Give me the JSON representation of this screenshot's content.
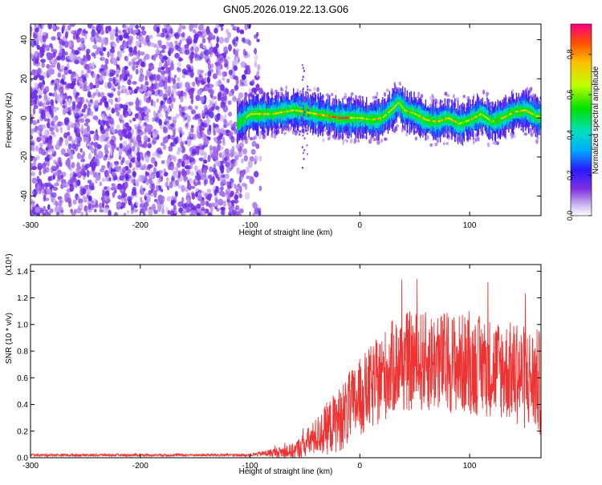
{
  "page_title": "GN05.2026.019.22.13.G06",
  "chart_data": [
    {
      "type": "heatmap",
      "title": "GN05.2026.019.22.13.G06",
      "xlabel": "Height of straight line (km)",
      "ylabel": "Frequency (Hz)",
      "xlim": [
        -300,
        165
      ],
      "ylim": [
        -50,
        48
      ],
      "x_ticks": [
        -300,
        -200,
        -100,
        0,
        100
      ],
      "x_tick_labels": [
        "-300",
        "-200",
        "-100",
        "0",
        "100"
      ],
      "y_ticks": [
        -40,
        -20,
        0,
        20,
        40
      ],
      "y_tick_labels": [
        "-40",
        "-20",
        "0",
        "20",
        "40"
      ],
      "colorbar": {
        "label": "Normalized spectral amplitude",
        "range": [
          0,
          0.95
        ],
        "ticks": [
          0.0,
          0.2,
          0.4,
          0.6,
          0.8
        ],
        "tick_labels": [
          "0.0",
          "0.2",
          "0.4",
          "0.6",
          "0.8"
        ]
      },
      "noise_region_x": [
        -300,
        -90
      ],
      "signal_track": {
        "x": [
          -112,
          -100,
          -80,
          -60,
          -50,
          -40,
          -30,
          -20,
          -10,
          0,
          10,
          20,
          30,
          35,
          40,
          50,
          60,
          70,
          80,
          90,
          100,
          110,
          120,
          130,
          140,
          150,
          160,
          165
        ],
        "y": [
          -3,
          2,
          2,
          4,
          3,
          2,
          1,
          0,
          0,
          0,
          -1,
          0,
          5,
          8,
          4,
          2,
          -1,
          -2,
          0,
          -3,
          -1,
          2,
          -2,
          0,
          3,
          4,
          1,
          0
        ],
        "peak_amplitude": 0.95
      }
    },
    {
      "type": "line",
      "title": "",
      "xlabel": "Height of straight line (km)",
      "ylabel": "SNR (10 * v/v)",
      "y_multiplier_label": "(x10⁴)",
      "xlim": [
        -300,
        165
      ],
      "ylim": [
        0,
        1.45
      ],
      "x_ticks": [
        -300,
        -200,
        -100,
        0,
        100
      ],
      "x_tick_labels": [
        "-300",
        "-200",
        "-100",
        "0",
        "100"
      ],
      "y_ticks": [
        0.0,
        0.2,
        0.4,
        0.6,
        0.8,
        1.0,
        1.2,
        1.4
      ],
      "y_tick_labels": [
        "0.0",
        "0.2",
        "0.4",
        "0.6",
        "0.8",
        "1.0",
        "1.2",
        "1.4"
      ],
      "series": [
        {
          "name": "SNR",
          "color": "#ee3333",
          "envelope": {
            "x": [
              -300,
              -100,
              -90,
              -60,
              -50,
              -40,
              -30,
              -20,
              -10,
              0,
              10,
              20,
              30,
              40,
              60,
              80,
              100,
              120,
              140,
              150,
              160,
              165
            ],
            "mean": [
              0.02,
              0.02,
              0.03,
              0.05,
              0.1,
              0.16,
              0.22,
              0.28,
              0.36,
              0.45,
              0.52,
              0.6,
              0.68,
              0.72,
              0.72,
              0.72,
              0.7,
              0.68,
              0.64,
              0.6,
              0.58,
              0.55
            ],
            "amplitude": [
              0.01,
              0.01,
              0.02,
              0.06,
              0.1,
              0.14,
              0.2,
              0.24,
              0.28,
              0.3,
              0.32,
              0.34,
              0.36,
              0.38,
              0.38,
              0.38,
              0.38,
              0.38,
              0.38,
              0.4,
              0.4,
              0.4
            ]
          }
        }
      ]
    }
  ]
}
